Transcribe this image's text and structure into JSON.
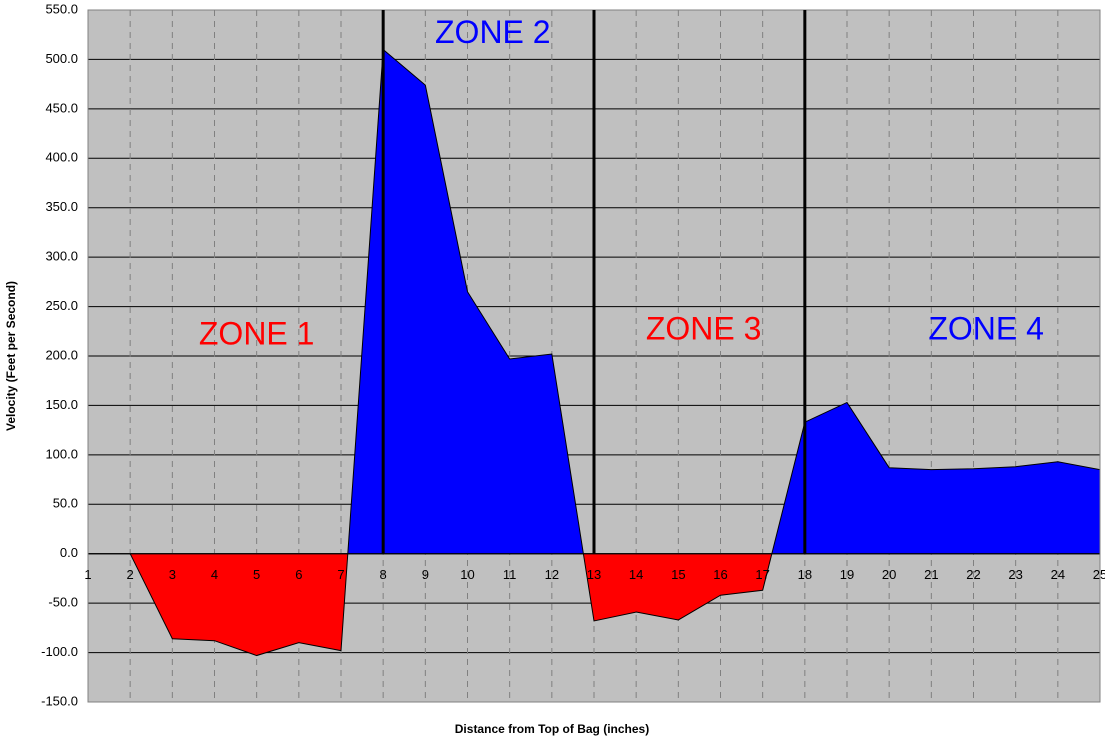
{
  "chart_data": {
    "type": "area",
    "x_label": "Distance from Top of Bag (inches)",
    "y_label": "Velocity (Feet per Second)",
    "categories": [
      1,
      2,
      3,
      4,
      5,
      6,
      7,
      8,
      9,
      10,
      11,
      12,
      13,
      14,
      15,
      16,
      17,
      18,
      19,
      20,
      21,
      22,
      23,
      24,
      25
    ],
    "series": [
      {
        "color": "#0000ff",
        "negative_color": "#ff0000",
        "values": [
          0,
          0,
          -86,
          -88,
          -103,
          -90,
          -98,
          510,
          474,
          265,
          197,
          202,
          -68,
          -59,
          -67,
          -42,
          -37,
          133,
          153,
          87,
          85,
          86,
          88,
          93,
          85
        ]
      }
    ],
    "ylim": [
      -150,
      550
    ],
    "yticks": [
      {
        "value": -150,
        "label": "-150.0"
      },
      {
        "value": -100,
        "label": "-100.0"
      },
      {
        "value": -50,
        "label": "-50.0"
      },
      {
        "value": 0,
        "label": "0.0"
      },
      {
        "value": 50,
        "label": "50.0"
      },
      {
        "value": 100,
        "label": "100.0"
      },
      {
        "value": 150,
        "label": "150.0"
      },
      {
        "value": 200,
        "label": "200.0"
      },
      {
        "value": 250,
        "label": "250.0"
      },
      {
        "value": 300,
        "label": "300.0"
      },
      {
        "value": 350,
        "label": "350.0"
      },
      {
        "value": 400,
        "label": "400.0"
      },
      {
        "value": 450,
        "label": "450.0"
      },
      {
        "value": 500,
        "label": "500.0"
      },
      {
        "value": 550,
        "label": "550.0"
      }
    ],
    "grid": true,
    "zone_lines": [
      8,
      13,
      18
    ],
    "annotations": [
      {
        "text": "ZONE 1",
        "x": 5,
        "y": 220,
        "color": "#ff0000"
      },
      {
        "text": "ZONE 2",
        "x": 10.6,
        "y": 525,
        "color": "#0000ff"
      },
      {
        "text": "ZONE 3",
        "x": 15.6,
        "y": 225,
        "color": "#ff0000"
      },
      {
        "text": "ZONE 4",
        "x": 22.3,
        "y": 225,
        "color": "#0000ff"
      }
    ]
  }
}
